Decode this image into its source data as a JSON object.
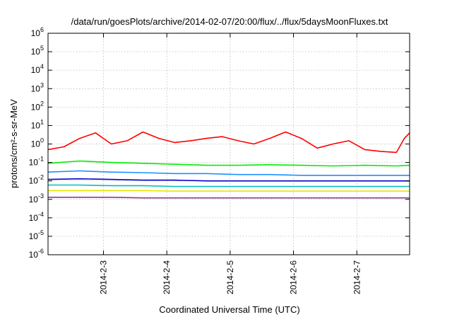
{
  "chart_data": {
    "type": "line",
    "title": "/data/run/goesPlots/archive/2014-02-07/20:00/flux/../flux/5daysMoonFluxes.txt",
    "xlabel": "Coordinated Universal Time (UTC)",
    "ylabel": "protons/cm²-s-sr-MeV",
    "y_scale": "log",
    "ylim": [
      1e-06,
      1000000.0
    ],
    "y_ticks": [
      {
        "value": 1e-06,
        "base": "10",
        "exp": "-6"
      },
      {
        "value": 1e-05,
        "base": "10",
        "exp": "-5"
      },
      {
        "value": 0.0001,
        "base": "10",
        "exp": "-4"
      },
      {
        "value": 0.001,
        "base": "10",
        "exp": "-3"
      },
      {
        "value": 0.01,
        "base": "10",
        "exp": "-2"
      },
      {
        "value": 0.1,
        "base": "10",
        "exp": "-1"
      },
      {
        "value": 1.0,
        "base": "10",
        "exp": "0"
      },
      {
        "value": 10.0,
        "base": "10",
        "exp": "1"
      },
      {
        "value": 100.0,
        "base": "10",
        "exp": "2"
      },
      {
        "value": 1000.0,
        "base": "10",
        "exp": "3"
      },
      {
        "value": 10000.0,
        "base": "10",
        "exp": "4"
      },
      {
        "value": 100000.0,
        "base": "10",
        "exp": "5"
      },
      {
        "value": 1000000.0,
        "base": "10",
        "exp": "6"
      }
    ],
    "xlim": [
      "2014-02-02T03:00",
      "2014-02-07T20:00"
    ],
    "x_ticks": [
      "2014-2-3",
      "2014-2-4",
      "2014-2-5",
      "2014-2-6",
      "2014-2-7"
    ],
    "grid": true,
    "legend": "none",
    "series": [
      {
        "color": "#ff0000",
        "x": [
          "2014-02-02T03:00",
          "2014-02-02T09:00",
          "2014-02-02T15:00",
          "2014-02-02T21:00",
          "2014-02-03T03:00",
          "2014-02-03T09:00",
          "2014-02-03T15:00",
          "2014-02-03T21:00",
          "2014-02-04T03:00",
          "2014-02-04T09:00",
          "2014-02-04T15:00",
          "2014-02-04T21:00",
          "2014-02-05T03:00",
          "2014-02-05T09:00",
          "2014-02-05T15:00",
          "2014-02-05T21:00",
          "2014-02-06T03:00",
          "2014-02-06T09:00",
          "2014-02-06T15:00",
          "2014-02-06T21:00",
          "2014-02-07T03:00",
          "2014-02-07T09:00",
          "2014-02-07T15:00",
          "2014-02-07T18:00",
          "2014-02-07T20:00"
        ],
        "values": [
          0.5,
          0.7,
          2,
          4,
          1,
          1.5,
          4.5,
          2,
          1.2,
          1.5,
          2,
          2.5,
          1.5,
          1,
          2,
          4.5,
          2,
          0.6,
          1,
          1.5,
          0.5,
          0.4,
          0.35,
          2,
          4
        ]
      },
      {
        "color": "#00ee00",
        "x": [
          "2014-02-02T03:00",
          "2014-02-02T15:00",
          "2014-02-03T03:00",
          "2014-02-03T15:00",
          "2014-02-04T03:00",
          "2014-02-04T15:00",
          "2014-02-05T03:00",
          "2014-02-05T15:00",
          "2014-02-06T03:00",
          "2014-02-06T15:00",
          "2014-02-07T03:00",
          "2014-02-07T15:00",
          "2014-02-07T20:00"
        ],
        "values": [
          0.09,
          0.12,
          0.1,
          0.09,
          0.08,
          0.07,
          0.07,
          0.075,
          0.07,
          0.065,
          0.07,
          0.065,
          0.07
        ]
      },
      {
        "color": "#1e90ff",
        "x": [
          "2014-02-02T03:00",
          "2014-02-02T15:00",
          "2014-02-03T03:00",
          "2014-02-03T15:00",
          "2014-02-04T03:00",
          "2014-02-04T15:00",
          "2014-02-05T03:00",
          "2014-02-05T15:00",
          "2014-02-06T03:00",
          "2014-02-06T15:00",
          "2014-02-07T03:00",
          "2014-02-07T15:00",
          "2014-02-07T20:00"
        ],
        "values": [
          0.03,
          0.035,
          0.03,
          0.028,
          0.025,
          0.025,
          0.022,
          0.022,
          0.02,
          0.02,
          0.02,
          0.02,
          0.02
        ]
      },
      {
        "color": "#0000cd",
        "x": [
          "2014-02-02T03:00",
          "2014-02-02T15:00",
          "2014-02-03T03:00",
          "2014-02-03T15:00",
          "2014-02-04T03:00",
          "2014-02-04T15:00",
          "2014-02-05T03:00",
          "2014-02-05T15:00",
          "2014-02-06T03:00",
          "2014-02-06T15:00",
          "2014-02-07T03:00",
          "2014-02-07T15:00",
          "2014-02-07T20:00"
        ],
        "values": [
          0.012,
          0.013,
          0.012,
          0.011,
          0.011,
          0.01,
          0.01,
          0.01,
          0.01,
          0.01,
          0.01,
          0.01,
          0.01
        ]
      },
      {
        "color": "#00bfbf",
        "x": [
          "2014-02-02T03:00",
          "2014-02-02T15:00",
          "2014-02-03T03:00",
          "2014-02-03T15:00",
          "2014-02-04T03:00",
          "2014-02-04T15:00",
          "2014-02-05T03:00",
          "2014-02-05T15:00",
          "2014-02-06T03:00",
          "2014-02-06T15:00",
          "2014-02-07T03:00",
          "2014-02-07T15:00",
          "2014-02-07T20:00"
        ],
        "values": [
          0.006,
          0.006,
          0.0055,
          0.0055,
          0.005,
          0.005,
          0.005,
          0.005,
          0.005,
          0.005,
          0.005,
          0.005,
          0.005
        ]
      },
      {
        "color": "#e6e600",
        "x": [
          "2014-02-02T03:00",
          "2014-02-02T15:00",
          "2014-02-03T03:00",
          "2014-02-03T15:00",
          "2014-02-04T03:00",
          "2014-02-04T15:00",
          "2014-02-05T03:00",
          "2014-02-05T15:00",
          "2014-02-06T03:00",
          "2014-02-06T15:00",
          "2014-02-07T03:00",
          "2014-02-07T15:00",
          "2014-02-07T20:00"
        ],
        "values": [
          0.003,
          0.003,
          0.003,
          0.003,
          0.0028,
          0.0028,
          0.0028,
          0.0028,
          0.0028,
          0.0028,
          0.0028,
          0.0028,
          0.0028
        ]
      },
      {
        "color": "#8b3a8b",
        "x": [
          "2014-02-02T03:00",
          "2014-02-02T15:00",
          "2014-02-03T03:00",
          "2014-02-03T15:00",
          "2014-02-04T03:00",
          "2014-02-04T15:00",
          "2014-02-05T03:00",
          "2014-02-05T15:00",
          "2014-02-06T03:00",
          "2014-02-06T15:00",
          "2014-02-07T03:00",
          "2014-02-07T15:00",
          "2014-02-07T20:00"
        ],
        "values": [
          0.0013,
          0.0013,
          0.0013,
          0.0012,
          0.0012,
          0.0012,
          0.0012,
          0.0012,
          0.0012,
          0.0012,
          0.0012,
          0.0012,
          0.0012
        ]
      }
    ]
  }
}
